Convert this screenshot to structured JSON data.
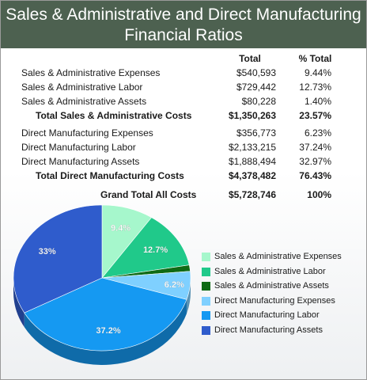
{
  "title": {
    "line1": "Sales & Administrative and Direct Manufacturing",
    "line2": "Financial Ratios"
  },
  "table": {
    "headers": {
      "total": "Total",
      "pct": "% Total"
    },
    "rows": [
      {
        "label": "Sales & Administrative Expenses",
        "total": "$540,593",
        "pct": "9.44%",
        "bold": false
      },
      {
        "label": "Sales & Administrative Labor",
        "total": "$729,442",
        "pct": "12.73%",
        "bold": false
      },
      {
        "label": "Sales & Administrative Assets",
        "total": "$80,228",
        "pct": "1.40%",
        "bold": false
      },
      {
        "label": "Total Sales & Administrative Costs",
        "total": "$1,350,263",
        "pct": "23.57%",
        "bold": true
      },
      {
        "label": "Direct Manufacturing Expenses",
        "total": "$356,773",
        "pct": "6.23%",
        "bold": false
      },
      {
        "label": "Direct Manufacturing Labor",
        "total": "$2,133,215",
        "pct": "37.24%",
        "bold": false
      },
      {
        "label": "Direct Manufacturing Assets",
        "total": "$1,888,494",
        "pct": "32.97%",
        "bold": false
      },
      {
        "label": "Total Direct Manufacturing Costs",
        "total": "$4,378,482",
        "pct": "76.43%",
        "bold": true
      },
      {
        "label": "Grand Total All Costs",
        "total": "$5,728,746",
        "pct": "100%",
        "bold": true
      }
    ]
  },
  "chart_data": {
    "type": "pie",
    "categories": [
      "Sales & Administrative Expenses",
      "Sales & Administrative Labor",
      "Sales & Administrative Assets",
      "Direct Manufacturing Expenses",
      "Direct Manufacturing Labor",
      "Direct Manufacturing Assets"
    ],
    "values": [
      9.44,
      12.73,
      1.4,
      6.23,
      37.24,
      32.97
    ],
    "labels": [
      "9.4%",
      "12.7%",
      "",
      "6.2%",
      "37.2%",
      "33%"
    ],
    "colors": [
      "#a6f7cc",
      "#20c98a",
      "#0f6a15",
      "#7fd0ff",
      "#1599f2",
      "#2f5ccc"
    ],
    "legend_position": "right"
  }
}
